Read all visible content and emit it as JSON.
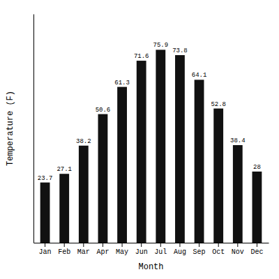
{
  "chart_data": {
    "type": "bar",
    "x_label": "Month",
    "y_label": "Temperature (F)",
    "categories": [
      "Jan",
      "Feb",
      "Mar",
      "Apr",
      "May",
      "Jun",
      "Jul",
      "Aug",
      "Sep",
      "Oct",
      "Nov",
      "Dec"
    ],
    "values": [
      23.7,
      27.1,
      38.2,
      50.6,
      61.3,
      71.6,
      75.9,
      73.8,
      64.1,
      52.8,
      38.4,
      28.0
    ],
    "color": "#111111",
    "ylim": [
      0,
      90
    ],
    "yticks": [],
    "data_labels": true,
    "tick_labels": "x"
  }
}
